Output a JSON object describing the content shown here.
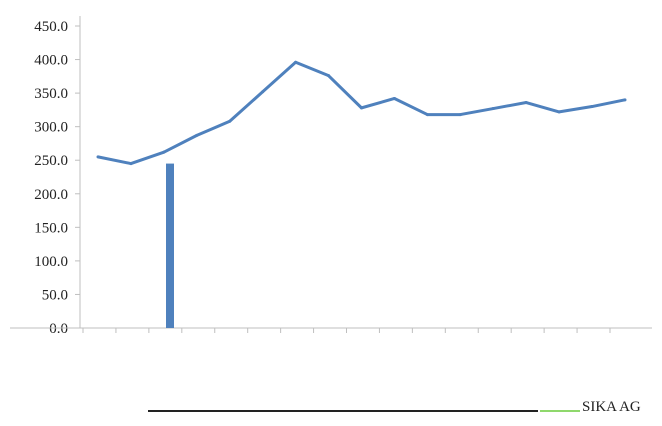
{
  "chart_data": {
    "type": "line",
    "ylim": [
      0,
      450
    ],
    "yticks": [
      "0.0",
      "50.0",
      "100.0",
      "150.0",
      "200.0",
      "250.0",
      "300.0",
      "350.0",
      "400.0",
      "450.0"
    ],
    "x_count": 17,
    "series": [
      {
        "name": "SIKA AG",
        "color": "#4f81bd",
        "values": [
          255,
          245,
          262,
          287,
          308,
          352,
          396,
          376,
          328,
          342,
          318,
          318,
          327,
          336,
          322,
          330,
          340
        ]
      }
    ]
  },
  "legend": [
    {
      "label": "",
      "color": "#222222"
    },
    {
      "label": "SIKA AG",
      "color": "#8fd86c"
    }
  ],
  "colors": {
    "axis": "#bfbfbf",
    "bar": "#4f81bd"
  }
}
